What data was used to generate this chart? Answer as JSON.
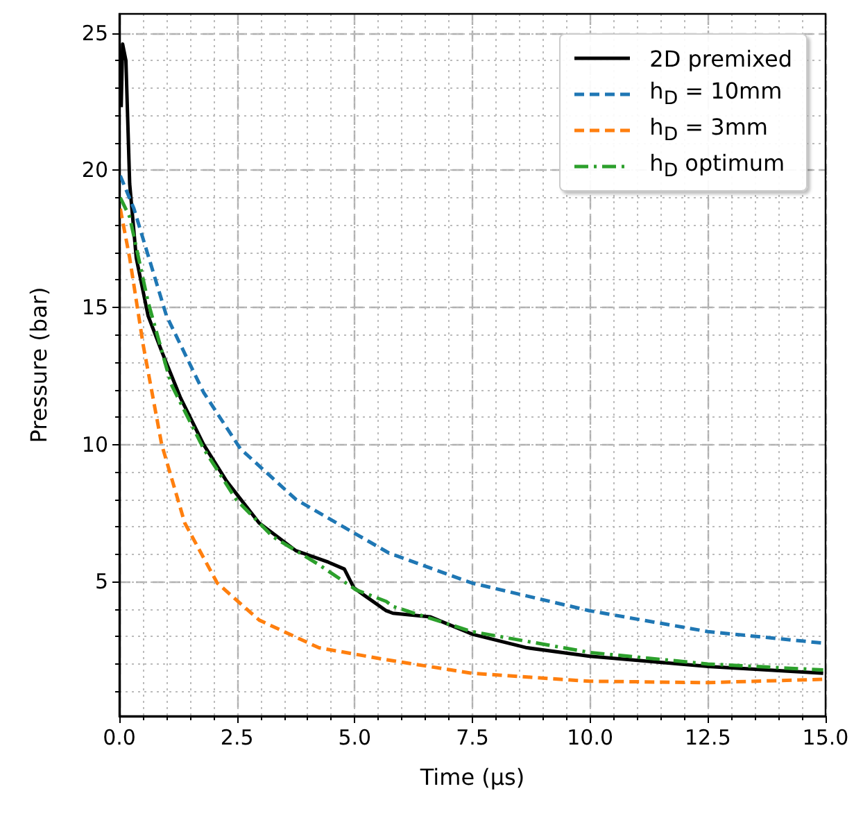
{
  "chart_data": {
    "type": "line",
    "xlabel": "Time (µs)",
    "ylabel": "Pressure (bar)",
    "xlim": [
      0,
      15
    ],
    "ylim": [
      0.1,
      25.7
    ],
    "xticks": [
      {
        "value": 0,
        "label": "0.0"
      },
      {
        "value": 2.5,
        "label": "2.5"
      },
      {
        "value": 5,
        "label": "5.0"
      },
      {
        "value": 7.5,
        "label": "7.5"
      },
      {
        "value": 10,
        "label": "10.0"
      },
      {
        "value": 12.5,
        "label": "12.5"
      },
      {
        "value": 15,
        "label": "15.0"
      }
    ],
    "yticks": [
      5,
      10,
      15,
      20,
      25
    ],
    "grid": true,
    "legend": "top right",
    "marker": "none",
    "series": [
      {
        "name": "2D premixed",
        "color": "#000000",
        "line_style": "solid",
        "x": [
          0.04,
          0.07,
          0.14,
          0.22,
          0.36,
          0.61,
          0.9,
          1.3,
          1.79,
          2.28,
          2.97,
          3.75,
          4.44,
          4.78,
          4.98,
          5.18,
          5.67,
          5.81,
          6.6,
          7.49,
          8.66,
          9.99,
          12.5,
          14.95
        ],
        "values": [
          22.3,
          24.6,
          24.0,
          19.5,
          16.8,
          14.7,
          13.4,
          11.7,
          10.0,
          8.66,
          7.14,
          6.13,
          5.71,
          5.46,
          4.78,
          4.53,
          3.94,
          3.85,
          3.72,
          3.09,
          2.59,
          2.28,
          1.91,
          1.66
        ]
      },
      {
        "name": "h$_{D}$ = 10mm",
        "color": "#1f77b4",
        "line_style": "dashed",
        "x": [
          0.02,
          0.31,
          1.0,
          1.79,
          2.57,
          3.75,
          5.72,
          7.49,
          9.99,
          12.5,
          14.95
        ],
        "values": [
          19.8,
          18.6,
          14.7,
          11.9,
          9.85,
          8.0,
          6.05,
          4.95,
          3.94,
          3.18,
          2.76
        ]
      },
      {
        "name": "h$_{D}$ = 3mm",
        "color": "#ff7f0e",
        "line_style": "dashed",
        "x": [
          0.02,
          0.22,
          0.51,
          0.9,
          1.39,
          2.08,
          2.97,
          4.24,
          5.62,
          7.49,
          9.99,
          12.5,
          14.95
        ],
        "values": [
          18.6,
          16.8,
          13.6,
          10.0,
          7.14,
          4.95,
          3.6,
          2.59,
          2.17,
          1.66,
          1.37,
          1.32,
          1.44
        ]
      },
      {
        "name": "h$_{D}$ optimum",
        "color": "#2ca02c",
        "line_style": "dashdot",
        "x": [
          0.02,
          0.22,
          0.61,
          1.1,
          1.79,
          2.48,
          3.26,
          4.24,
          5.03,
          5.67,
          5.81,
          7.49,
          9.99,
          12.5,
          14.95
        ],
        "values": [
          19.0,
          18.3,
          15.2,
          12.2,
          9.85,
          8.0,
          6.64,
          5.62,
          4.7,
          4.28,
          4.1,
          3.18,
          2.42,
          2.0,
          1.78
        ]
      }
    ]
  }
}
